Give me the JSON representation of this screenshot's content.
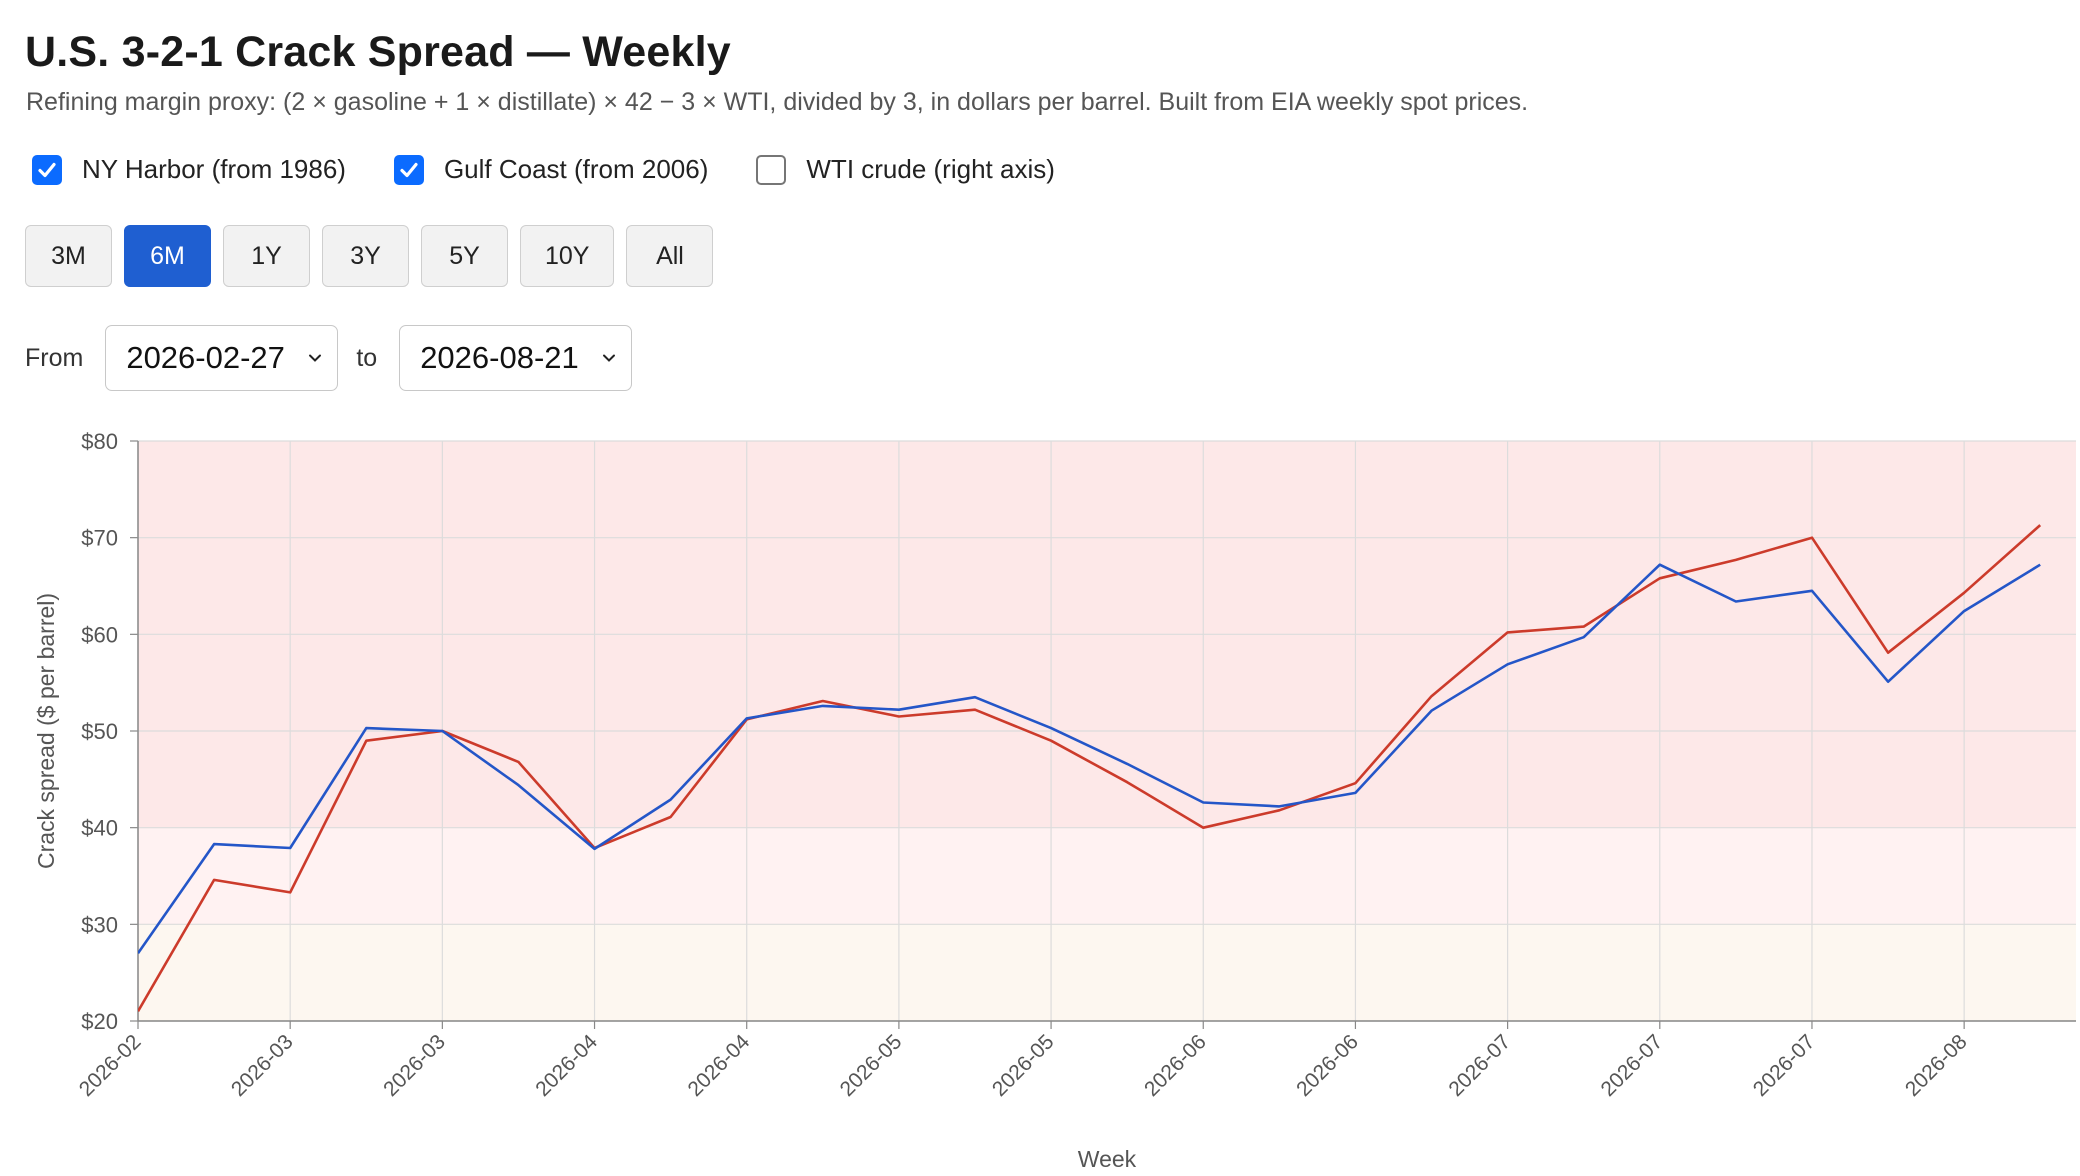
{
  "header": {
    "title": "U.S. 3-2-1 Crack Spread — Weekly",
    "subtitle": "Refining margin proxy: (2 × gasoline + 1 × distillate) × 42 − 3 × WTI, divided by 3, in dollars per barrel. Built from EIA weekly spot prices."
  },
  "toggles": [
    {
      "label": "NY Harbor (from 1986)",
      "checked": true
    },
    {
      "label": "Gulf Coast (from 2006)",
      "checked": true
    },
    {
      "label": "WTI crude (right axis)",
      "checked": false
    }
  ],
  "ranges": {
    "buttons": [
      "3M",
      "6M",
      "1Y",
      "3Y",
      "5Y",
      "10Y",
      "All"
    ],
    "active": "6M"
  },
  "date_range": {
    "from_label": "From",
    "from_value": "2026-02-27",
    "to_label": "to",
    "to_value": "2026-08-21"
  },
  "colors": {
    "ny_harbor": "#2456c8",
    "gulf_coast": "#cc3b2b",
    "band_high": "#fde8e8",
    "band_mid": "#fff2f2",
    "band_low": "#fdf7f0",
    "active_button": "#1f5fd1",
    "checkbox": "#0b6bff"
  },
  "chart_data": {
    "type": "line",
    "xlabel": "Week",
    "ylabel": "Crack spread ($ per barrel)",
    "ylim": [
      20,
      80
    ],
    "yticks": [
      20,
      30,
      40,
      50,
      60,
      70,
      80
    ],
    "ytick_labels": [
      "$20",
      "$30",
      "$40",
      "$50",
      "$60",
      "$70",
      "$80"
    ],
    "x_tick_labels": [
      "2026-02",
      "2026-03",
      "2026-03",
      "2026-04",
      "2026-04",
      "2026-05",
      "2026-05",
      "2026-06",
      "2026-06",
      "2026-07",
      "2026-07",
      "2026-07",
      "2026-08"
    ],
    "bands": [
      {
        "from": 40,
        "to": 80,
        "color": "#fde8e8"
      },
      {
        "from": 30,
        "to": 40,
        "color": "#fff2f2"
      },
      {
        "from": 20,
        "to": 30,
        "color": "#fdf7f0"
      }
    ],
    "grid": true,
    "legend": "none",
    "x_count": 26,
    "series": [
      {
        "color": "#2456c8",
        "values": [
          27.0,
          38.3,
          37.9,
          50.3,
          50.0,
          44.4,
          37.8,
          42.9,
          51.3,
          52.6,
          52.2,
          53.5,
          50.3,
          46.6,
          42.6,
          42.2,
          43.6,
          52.1,
          56.9,
          59.7,
          67.2,
          63.4,
          64.5,
          55.1,
          62.4,
          67.2
        ]
      },
      {
        "color": "#cc3b2b",
        "values": [
          21.0,
          34.6,
          33.3,
          49.0,
          50.0,
          46.8,
          37.9,
          41.1,
          51.2,
          53.1,
          51.5,
          52.2,
          49.0,
          44.7,
          40.0,
          41.8,
          44.6,
          53.6,
          60.2,
          60.8,
          65.8,
          67.7,
          70.0,
          58.1,
          64.3,
          71.3
        ]
      }
    ]
  }
}
